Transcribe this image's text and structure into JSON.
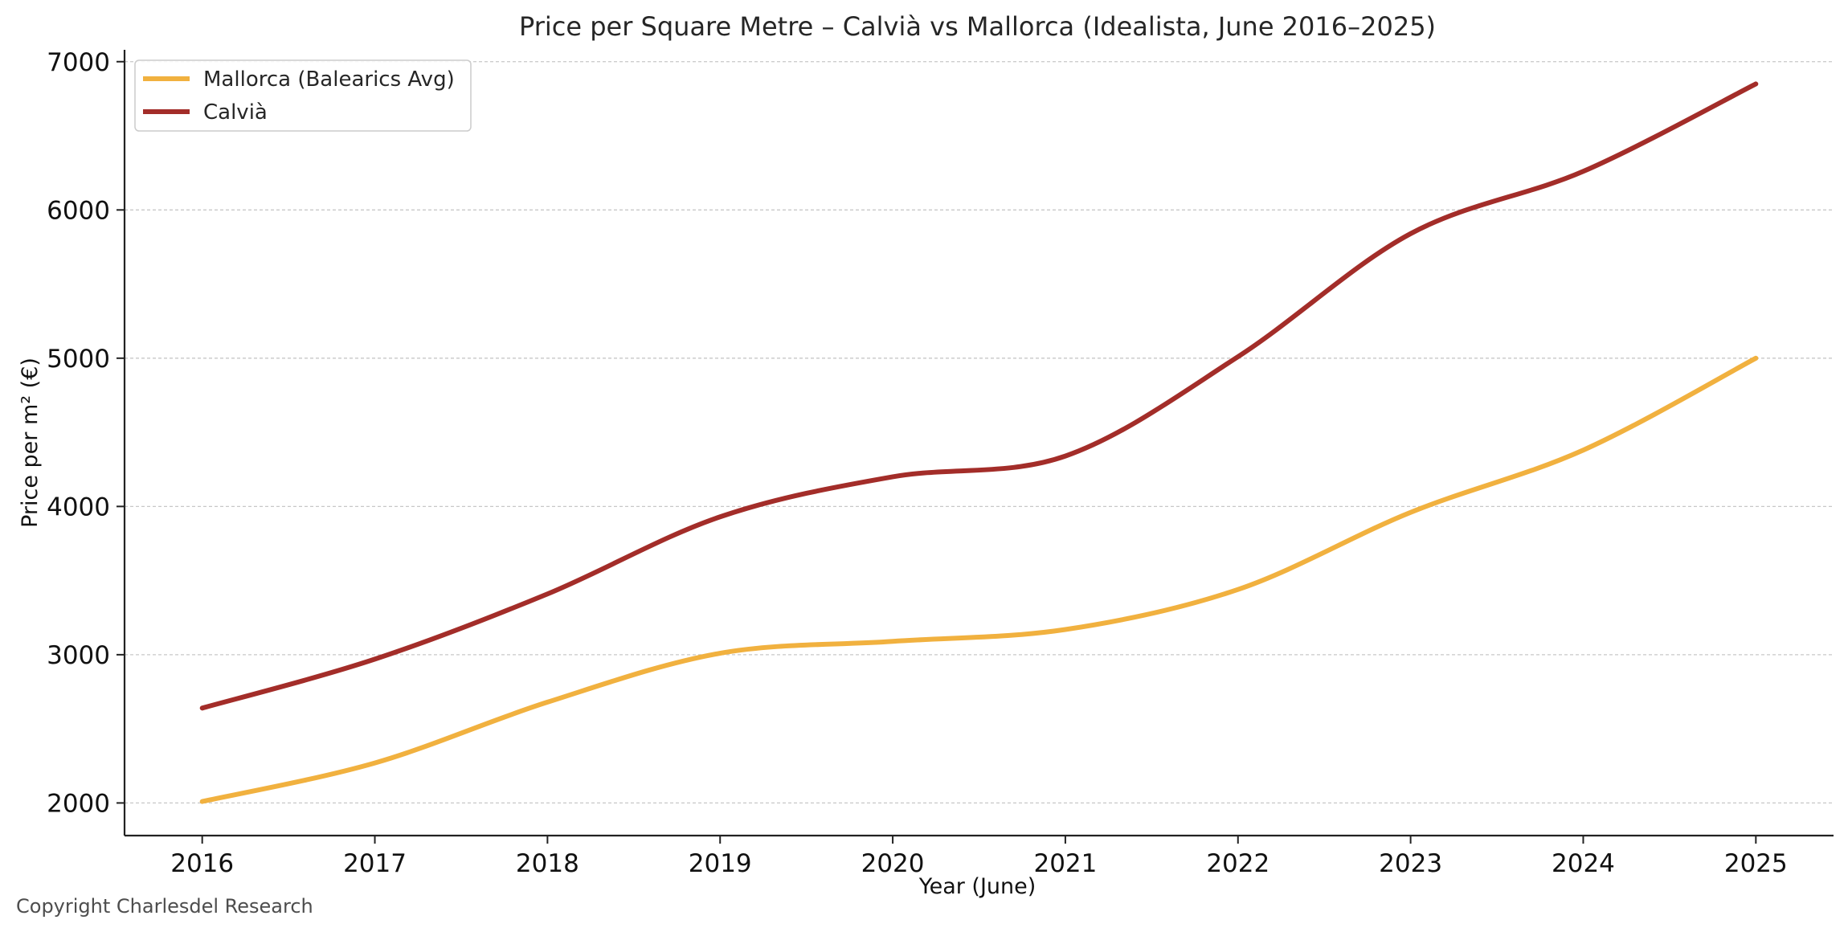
{
  "chart_data": {
    "type": "line",
    "title": "Price per Square Metre – Calvià vs Mallorca (Idealista, June 2016–2025)",
    "xlabel": "Year (June)",
    "ylabel": "Price per m² (€)",
    "x": [
      2016,
      2017,
      2018,
      2019,
      2020,
      2021,
      2022,
      2023,
      2024,
      2025
    ],
    "xlim": [
      2015.55,
      2025.45
    ],
    "ylim": [
      1780,
      7080
    ],
    "yticks": [
      2000,
      3000,
      4000,
      5000,
      6000,
      7000
    ],
    "grid": "horizontal",
    "legend_position": "top-left",
    "series": [
      {
        "name": "Mallorca (Balearics Avg)",
        "color": "#F1B13F",
        "values": [
          2010,
          2270,
          2680,
          3010,
          3090,
          3170,
          3440,
          3960,
          4380,
          5000
        ]
      },
      {
        "name": "Calvià",
        "color": "#A32D29",
        "values": [
          2640,
          2970,
          3410,
          3930,
          4200,
          4340,
          5010,
          5840,
          6260,
          6850
        ]
      }
    ]
  },
  "footer": {
    "copyright": "Copyright Charlesdel Research"
  }
}
